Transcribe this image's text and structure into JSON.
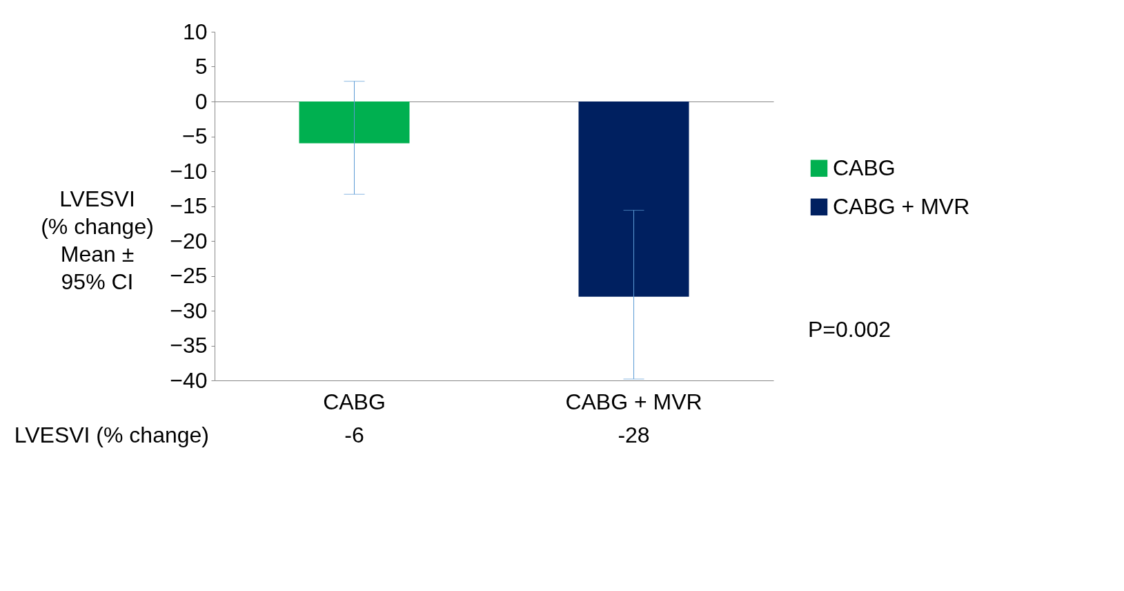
{
  "chart_data": {
    "type": "bar",
    "ylabel": "LVESVI\n(% change)\n\nMean ±\n95% CI",
    "categories": [
      "CABG",
      "CABG + MVR"
    ],
    "series": [
      {
        "name": "CABG",
        "color": "#00b050",
        "values": [
          -6,
          null
        ],
        "errors": [
          [
            -13.3,
            2.9
          ],
          null
        ]
      },
      {
        "name": "CABG + MVR",
        "color": "#002060",
        "values": [
          null,
          -28
        ],
        "errors": [
          null,
          [
            -39.8,
            -15.6
          ]
        ]
      }
    ],
    "ylim": [
      -40,
      10
    ],
    "yticks": [
      10,
      5,
      0,
      -5,
      -10,
      -15,
      -20,
      -25,
      -30,
      -35,
      -40
    ],
    "legend": "right",
    "annotations": [
      "LVESVI (% change)",
      "P=0.002",
      "-6",
      "-28"
    ]
  }
}
